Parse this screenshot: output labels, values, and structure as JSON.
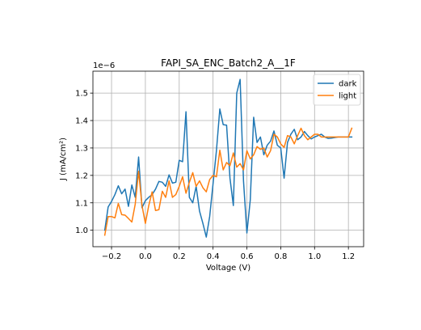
{
  "chart_data": {
    "type": "line",
    "title": "FAPI_SA_ENC_Batch2_A__1F",
    "xlabel": "Voltage (V)",
    "ylabel": "J (mA/cm²)",
    "y_offset_label": "1e−6",
    "y_scale_factor": 1e-06,
    "xlim": [
      -0.31,
      1.29
    ],
    "ylim": [
      0.94,
      1.58
    ],
    "x_ticks": [
      -0.2,
      0.0,
      0.2,
      0.4,
      0.6,
      0.8,
      1.0,
      1.2
    ],
    "x_tick_labels": [
      "−0.2",
      "0.0",
      "0.2",
      "0.4",
      "0.6",
      "0.8",
      "1.0",
      "1.2"
    ],
    "y_ticks": [
      1.0,
      1.1,
      1.2,
      1.3,
      1.4,
      1.5
    ],
    "y_tick_labels": [
      "1.0",
      "1.1",
      "1.2",
      "1.3",
      "1.4",
      "1.5"
    ],
    "grid": true,
    "legend_position": "top-right",
    "series": [
      {
        "name": "dark",
        "color": "#1f77b4",
        "x": [
          -0.24,
          -0.22,
          -0.2,
          -0.18,
          -0.16,
          -0.14,
          -0.12,
          -0.1,
          -0.08,
          -0.06,
          -0.04,
          -0.02,
          0.0,
          0.02,
          0.04,
          0.06,
          0.08,
          0.1,
          0.12,
          0.14,
          0.16,
          0.18,
          0.2,
          0.22,
          0.24,
          0.26,
          0.28,
          0.3,
          0.32,
          0.34,
          0.36,
          0.38,
          0.4,
          0.42,
          0.44,
          0.46,
          0.48,
          0.5,
          0.52,
          0.54,
          0.56,
          0.58,
          0.6,
          0.62,
          0.64,
          0.66,
          0.68,
          0.7,
          0.72,
          0.74,
          0.76,
          0.78,
          0.8,
          0.82,
          0.84,
          0.86,
          0.88,
          0.9,
          0.92,
          0.94,
          0.96,
          0.98,
          1.0,
          1.02,
          1.04,
          1.06,
          1.08,
          1.1,
          1.12,
          1.14,
          1.16,
          1.18,
          1.2,
          1.22
        ],
        "y": [
          1.0,
          1.085,
          1.105,
          1.13,
          1.162,
          1.133,
          1.15,
          1.087,
          1.165,
          1.12,
          1.267,
          1.082,
          1.108,
          1.12,
          1.13,
          1.15,
          1.178,
          1.175,
          1.16,
          1.202,
          1.172,
          1.175,
          1.255,
          1.25,
          1.432,
          1.12,
          1.1,
          1.16,
          1.07,
          1.025,
          0.975,
          1.05,
          1.17,
          1.29,
          1.442,
          1.385,
          1.383,
          1.19,
          1.09,
          1.5,
          1.55,
          1.18,
          0.99,
          1.11,
          1.412,
          1.32,
          1.34,
          1.275,
          1.31,
          1.325,
          1.362,
          1.31,
          1.3,
          1.19,
          1.32,
          1.35,
          1.368,
          1.33,
          1.34,
          1.36,
          1.345,
          1.333,
          1.34,
          1.345,
          1.35,
          1.34,
          1.335,
          1.336,
          1.338,
          1.34,
          1.34,
          1.34,
          1.34,
          1.34
        ]
      },
      {
        "name": "light",
        "color": "#ff7f0e",
        "x": [
          -0.24,
          -0.22,
          -0.2,
          -0.18,
          -0.16,
          -0.14,
          -0.12,
          -0.1,
          -0.08,
          -0.06,
          -0.04,
          -0.02,
          0.0,
          0.02,
          0.04,
          0.06,
          0.08,
          0.1,
          0.12,
          0.14,
          0.16,
          0.18,
          0.2,
          0.22,
          0.24,
          0.26,
          0.28,
          0.3,
          0.32,
          0.34,
          0.36,
          0.38,
          0.4,
          0.42,
          0.44,
          0.46,
          0.48,
          0.5,
          0.52,
          0.54,
          0.56,
          0.58,
          0.6,
          0.62,
          0.64,
          0.66,
          0.68,
          0.7,
          0.72,
          0.74,
          0.76,
          0.78,
          0.8,
          0.82,
          0.84,
          0.86,
          0.88,
          0.9,
          0.92,
          0.94,
          0.96,
          0.98,
          1.0,
          1.02,
          1.04,
          1.06,
          1.08,
          1.1,
          1.12,
          1.14,
          1.16,
          1.18,
          1.2,
          1.22
        ],
        "y": [
          0.982,
          1.05,
          1.05,
          1.045,
          1.098,
          1.057,
          1.055,
          1.043,
          1.03,
          1.095,
          1.215,
          1.09,
          1.025,
          1.09,
          1.14,
          1.072,
          1.075,
          1.142,
          1.12,
          1.18,
          1.12,
          1.13,
          1.16,
          1.195,
          1.135,
          1.175,
          1.21,
          1.16,
          1.18,
          1.155,
          1.14,
          1.185,
          1.2,
          1.195,
          1.292,
          1.22,
          1.247,
          1.235,
          1.282,
          1.23,
          1.243,
          1.22,
          1.29,
          1.26,
          1.275,
          1.305,
          1.295,
          1.3,
          1.267,
          1.29,
          1.35,
          1.34,
          1.315,
          1.302,
          1.345,
          1.34,
          1.315,
          1.345,
          1.372,
          1.345,
          1.33,
          1.34,
          1.35,
          1.35,
          1.34,
          1.34,
          1.34,
          1.34,
          1.34,
          1.34,
          1.34,
          1.34,
          1.34,
          1.372
        ]
      }
    ]
  }
}
